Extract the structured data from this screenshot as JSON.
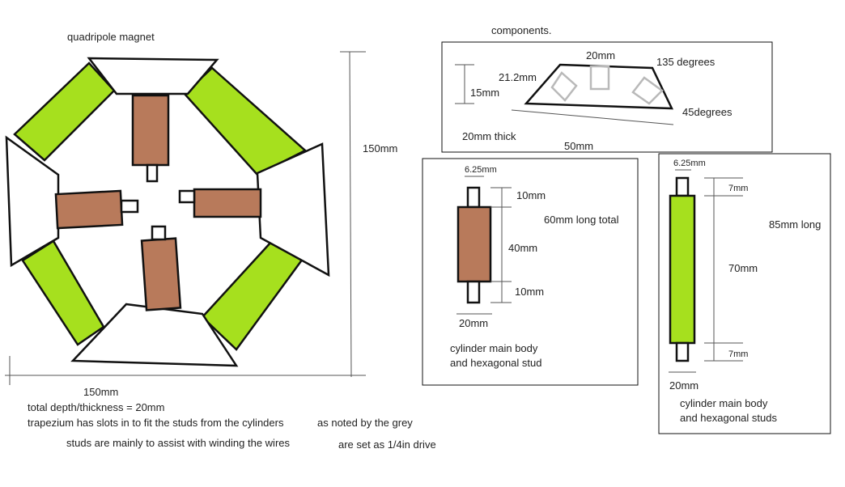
{
  "colors": {
    "green": "#a6e01e",
    "brown": "#b87a5b",
    "grey_slot": "#b9b9b9",
    "line": "#111111",
    "guide": "#555555"
  },
  "magnet": {
    "title": "quadripole magnet",
    "height_label": "150mm",
    "width_label": "150mm"
  },
  "notes": {
    "depth": "total depth/thickness = 20mm",
    "slots": "trapezium has slots in to fit the studs from the cylinders",
    "grey": "as noted by the grey",
    "winding": "studs are mainly to assist with winding the wires",
    "drive": "are set as 1/4in drive"
  },
  "components": {
    "title": "components.",
    "trapezium": {
      "top_width": "20mm",
      "side_length": "21.2mm",
      "height": "15mm",
      "angle_top": "135 degrees",
      "angle_bottom": "45degrees",
      "thickness": "20mm thick",
      "base_length": "50mm"
    },
    "cylinder_short": {
      "stud_width": "6.25mm",
      "stud_top": "10mm",
      "total": "60mm long total",
      "body_length": "40mm",
      "stud_bottom": "10mm",
      "body_width": "20mm",
      "caption_line1": "cylinder main body",
      "caption_line2": "and hexagonal stud"
    },
    "cylinder_long": {
      "stud_width": "6.25mm",
      "stud_top": "7mm",
      "total": "85mm long",
      "body_length": "70mm",
      "stud_bottom": "7mm",
      "body_width": "20mm",
      "caption_line1": "cylinder main body",
      "caption_line2": "and hexagonal studs"
    }
  }
}
